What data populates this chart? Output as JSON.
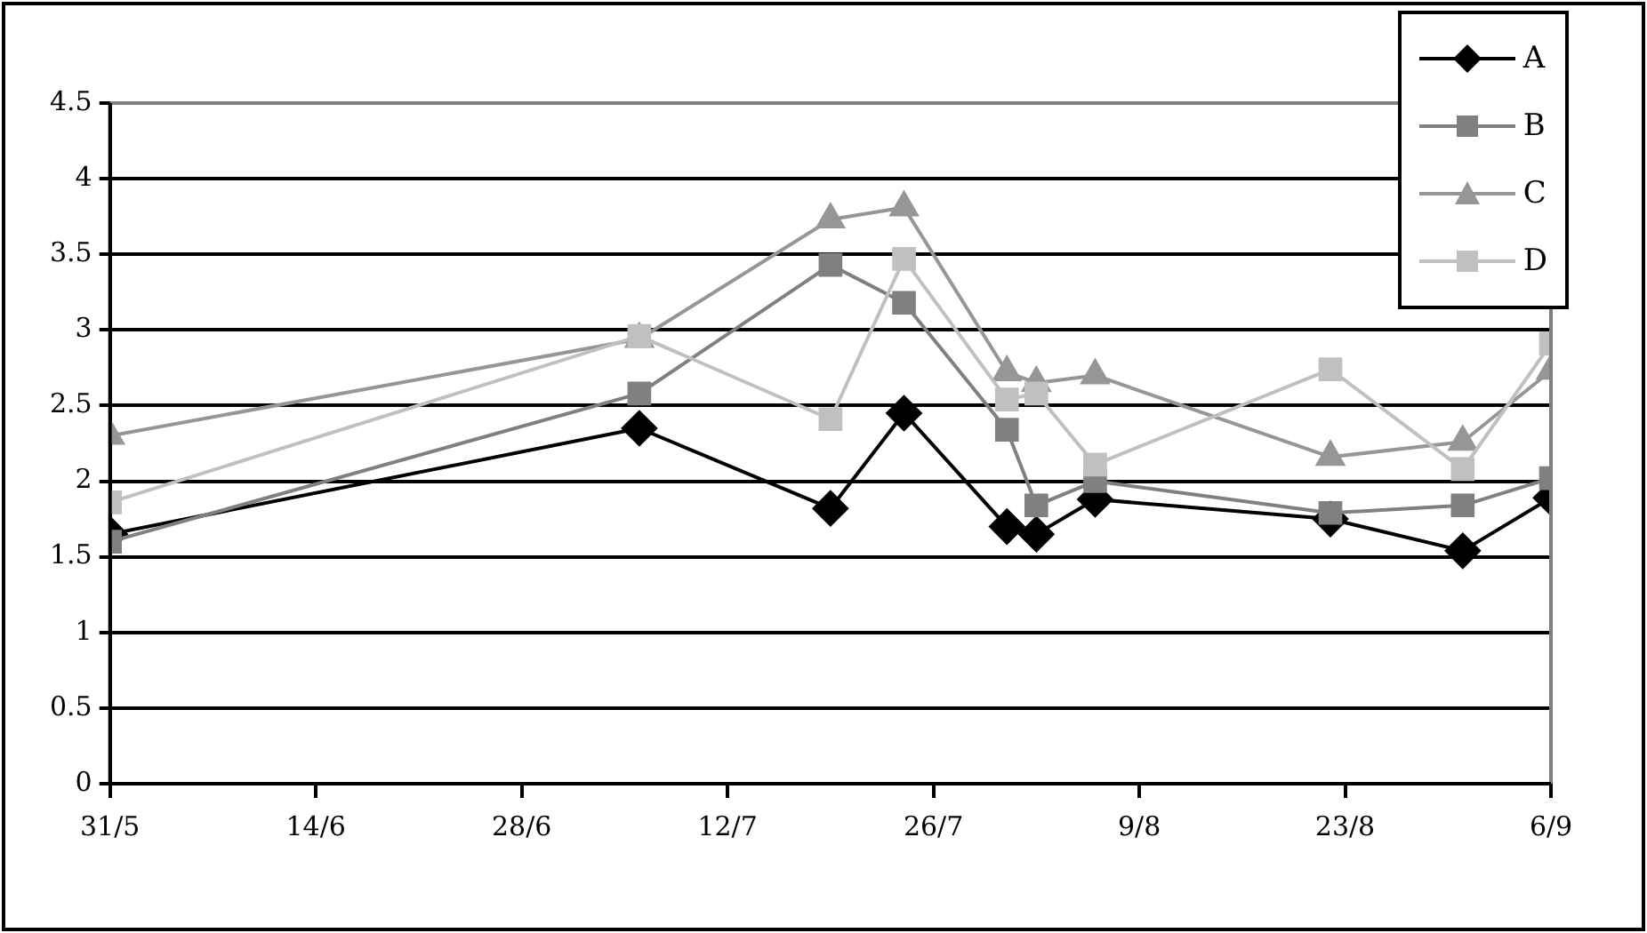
{
  "chart_data": {
    "type": "line",
    "x": [
      "--05-31",
      "--07-06",
      "--07-19",
      "--07-24",
      "--07-31",
      "--08-02",
      "--08-06",
      "--08-22",
      "--08-31",
      "--09-06"
    ],
    "series": [
      {
        "name": "A",
        "color": "#000000",
        "marker": "diamond",
        "values": [
          1.65,
          2.35,
          1.82,
          2.45,
          1.7,
          1.65,
          1.88,
          1.75,
          1.54,
          1.89
        ]
      },
      {
        "name": "B",
        "color": "#808080",
        "marker": "square",
        "values": [
          1.6,
          2.58,
          3.43,
          3.18,
          2.34,
          1.84,
          2.0,
          1.79,
          1.84,
          2.02
        ]
      },
      {
        "name": "C",
        "color": "#969696",
        "marker": "triangle",
        "values": [
          2.3,
          2.94,
          3.73,
          3.81,
          2.72,
          2.65,
          2.7,
          2.16,
          2.26,
          2.73
        ]
      },
      {
        "name": "D",
        "color": "#c0c0c0",
        "marker": "square",
        "values": [
          1.86,
          2.96,
          2.41,
          3.47,
          2.54,
          2.58,
          2.11,
          2.74,
          2.08,
          2.91
        ]
      }
    ],
    "xlim": [
      "--05-31",
      "--09-06"
    ],
    "xticks": [
      {
        "value": "--05-31",
        "label": "31/5"
      },
      {
        "value": "--06-14",
        "label": "14/6"
      },
      {
        "value": "--06-28",
        "label": "28/6"
      },
      {
        "value": "--07-12",
        "label": "12/7"
      },
      {
        "value": "--07-26",
        "label": "26/7"
      },
      {
        "value": "--08-09",
        "label": "9/8"
      },
      {
        "value": "--08-23",
        "label": "23/8"
      },
      {
        "value": "--09-06",
        "label": "6/9"
      }
    ],
    "ylim": [
      0,
      4.5
    ],
    "yticks": [
      0,
      0.5,
      1,
      1.5,
      2,
      2.5,
      3,
      3.5,
      4,
      4.5
    ],
    "grid": "y",
    "legend": "top right",
    "line_style": "solid"
  }
}
